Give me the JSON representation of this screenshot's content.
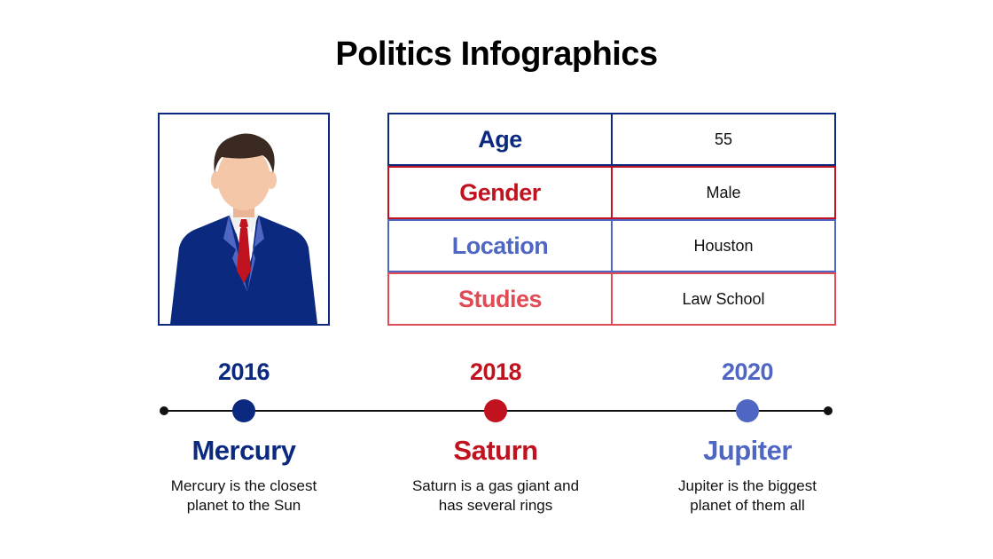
{
  "title": "Politics Infographics",
  "colors": {
    "navy": "#0b2a7f",
    "red": "#c0121f",
    "blue": "#4f67c3",
    "light_red": "#e14b55"
  },
  "portrait": {
    "icon": "businessman-avatar-icon"
  },
  "profile": [
    {
      "label": "Age",
      "value": "55"
    },
    {
      "label": "Gender",
      "value": "Male"
    },
    {
      "label": "Location",
      "value": "Houston"
    },
    {
      "label": "Studies",
      "value": "Law School"
    }
  ],
  "timeline": [
    {
      "year": "2016",
      "name": "Mercury",
      "desc1": "Mercury is the closest",
      "desc2": "planet to the Sun"
    },
    {
      "year": "2018",
      "name": "Saturn",
      "desc1": "Saturn is a gas giant and",
      "desc2": "has several rings"
    },
    {
      "year": "2020",
      "name": "Jupiter",
      "desc1": "Jupiter is the biggest",
      "desc2": "planet of them all"
    }
  ]
}
